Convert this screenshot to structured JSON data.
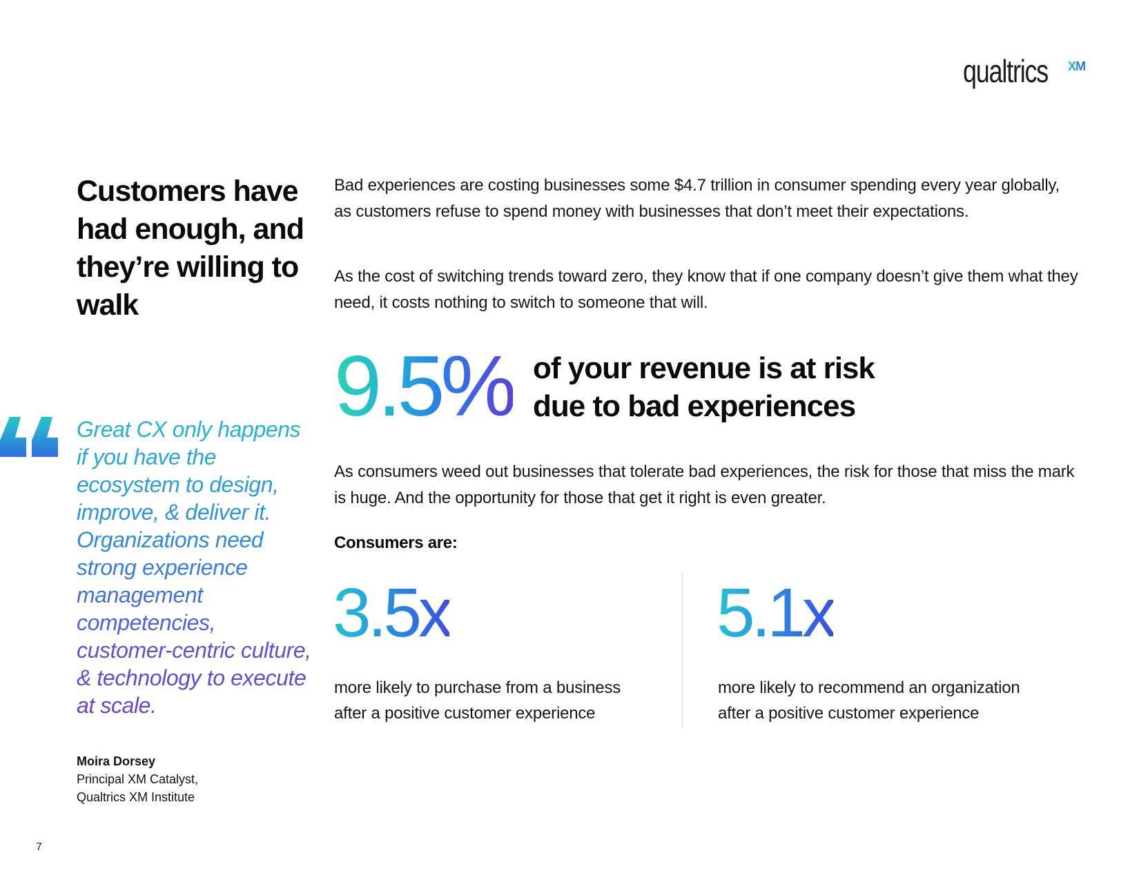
{
  "brand": {
    "name": "qualtrics",
    "suffix": "XM",
    "registered": "®"
  },
  "headline": "Customers have had enough, and they’re willing to walk",
  "quote": {
    "text": "Great CX only happens if you have the ecosystem to design, improve, & deliver it. Organizations need strong experience management competencies, customer-centric culture, & technology to execute at scale.",
    "author_name": "Moira Dorsey",
    "author_title": "Principal XM Catalyst,",
    "author_org": "Qualtrics XM Institute",
    "quote_icon": "quote-mark-icon",
    "colors": [
      "#20b8d0",
      "#2f86e0",
      "#6b3ed0"
    ]
  },
  "paragraphs": {
    "p1": "Bad experiences are costing businesses some $4.7 trillion in consumer spending every year globally, as customers refuse to spend money with businesses that don’t meet their expectations.",
    "p2": "As the cost of switching trends toward zero, they know that if one company doesn’t give them what they need, it costs nothing to switch to someone that will.",
    "p3": "As consumers weed out businesses that tolerate bad experiences, the risk for those that miss the mark is huge. And the opportunity for those that get it right is even greater."
  },
  "highlight": {
    "value": "9.5%",
    "label_line1": "of your revenue is at risk",
    "label_line2": "due to bad experiences"
  },
  "consumers_heading": "Consumers are:",
  "metrics": [
    {
      "value": "3.5x",
      "line1": "more likely to purchase from a business",
      "line2": "after a positive customer experience"
    },
    {
      "value": "5.1x",
      "line1": "more likely to recommend an organization",
      "line2": "after a positive customer experience"
    }
  ],
  "page_number": "7"
}
